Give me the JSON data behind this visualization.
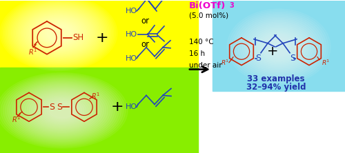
{
  "fig_width": 5.0,
  "fig_height": 2.22,
  "dpi": 100,
  "yellow_top_color": "#ffff00",
  "green_bot_color": "#88ee00",
  "cyan_color": "#88ddee",
  "bi_text": "Bi(OTf)",
  "bi_sub": "3",
  "cond1": "(5.0 mol%)",
  "cond2": "140 °C",
  "cond3": "16 h",
  "cond4": "under air",
  "result1": "33 examples",
  "result2": "32–94% yield",
  "red": "#cc2200",
  "blue": "#2244bb",
  "magenta": "#ee00cc",
  "dark_blue": "#2233aa",
  "purple": "#9966aa"
}
